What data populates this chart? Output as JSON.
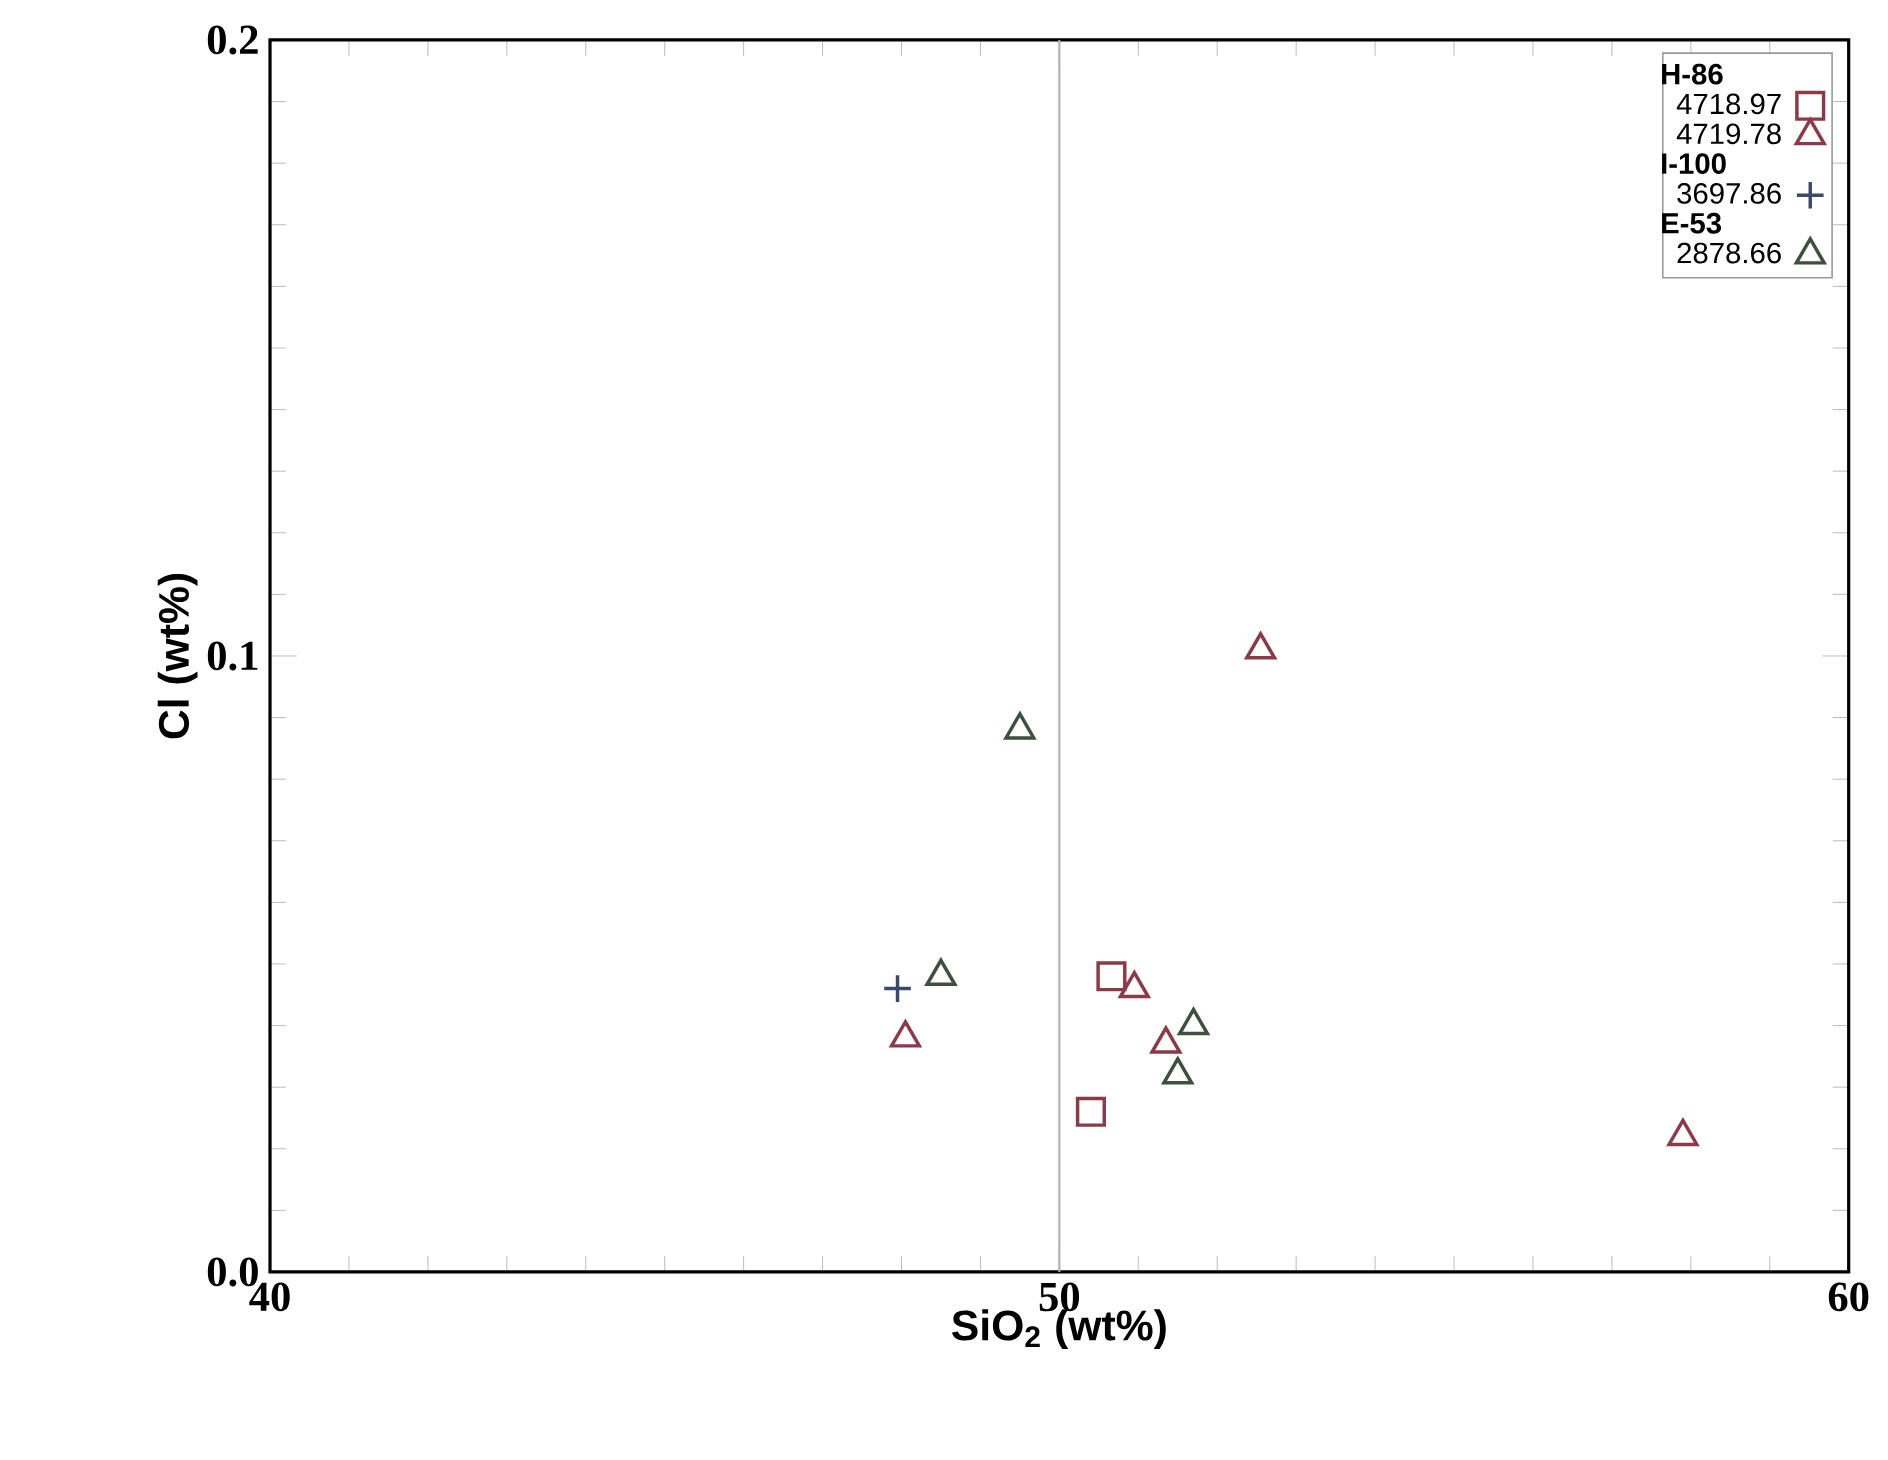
{
  "chart_data": {
    "type": "scatter",
    "xlabel": "SiO$_{2}$ (wt%)",
    "ylabel": "Cl (wt%)",
    "xlim": [
      40,
      60
    ],
    "ylim": [
      0,
      0.2
    ],
    "xticks": [
      40,
      50,
      60
    ],
    "yticks": [
      {
        "value": 0,
        "label": "0.0"
      },
      {
        "value": 0.1,
        "label": "0.1"
      },
      {
        "value": 0.2,
        "label": "0.2"
      }
    ],
    "grid": false,
    "legend": "top right",
    "annotations": [
      "H-86",
      "I-100",
      "E-53"
    ],
    "ref_lines": [
      {
        "axis": "x",
        "value": 50,
        "color": "#b0b0b0"
      }
    ],
    "series": [
      {
        "name": "4718.97",
        "color": "#8b3a4a",
        "marker": "square",
        "x": [
          50.66,
          50.4
        ],
        "values": [
          0.048,
          0.026
        ]
      },
      {
        "name": "4719.78",
        "color": "#8b3a4a",
        "marker": "triangle",
        "x": [
          52.55,
          48.05,
          50.95,
          51.35,
          57.9
        ],
        "values": [
          0.101,
          0.038,
          0.046,
          0.037,
          0.022
        ]
      },
      {
        "name": "3697.86",
        "color": "#3b4a6b",
        "marker": "cross",
        "x": [
          47.95
        ],
        "values": [
          0.046
        ]
      },
      {
        "name": "2878.66",
        "color": "#3d4f3d",
        "marker": "triangle",
        "x": [
          49.5,
          48.5,
          51.7,
          51.5
        ],
        "values": [
          0.088,
          0.048,
          0.04,
          0.032
        ]
      }
    ]
  }
}
